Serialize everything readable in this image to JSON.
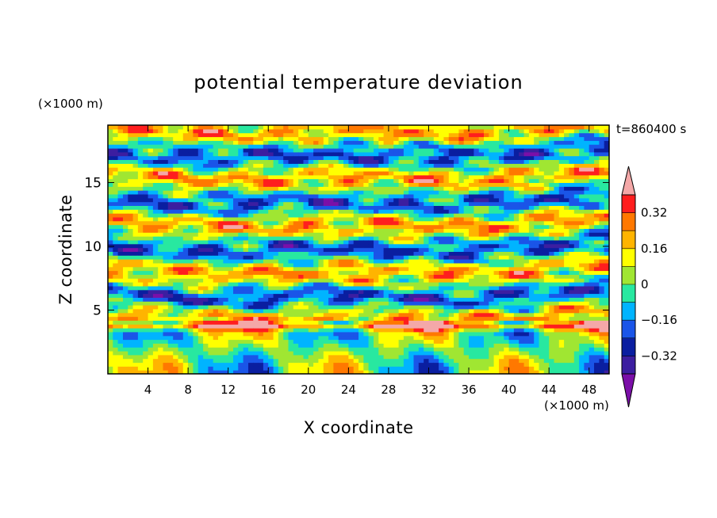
{
  "chart_data": {
    "type": "heatmap",
    "title": "potential temperature deviation",
    "xlabel": "X coordinate",
    "ylabel": "Z coordinate",
    "x_unit": "(×1000 m)",
    "y_unit": "(×1000 m)",
    "time_label": "t=860400 s",
    "xlim": [
      0,
      50
    ],
    "ylim": [
      0,
      19.5
    ],
    "x_ticks": [
      4,
      8,
      12,
      16,
      20,
      24,
      28,
      32,
      36,
      40,
      44,
      48
    ],
    "y_ticks": [
      5,
      10,
      15
    ],
    "colorbar": {
      "levels": [
        -0.4,
        -0.32,
        -0.24,
        -0.16,
        -0.08,
        0,
        0.08,
        0.16,
        0.24,
        0.32,
        0.4
      ],
      "tick_values": [
        0.32,
        0.16,
        0,
        -0.16,
        -0.32
      ],
      "tick_labels": [
        "0.32",
        "0.16",
        "0",
        "−0.16",
        "−0.32"
      ],
      "colors": [
        "#7b0fa8",
        "#3c1ea0",
        "#0a1ea0",
        "#1a55e8",
        "#00b4ff",
        "#28e8a0",
        "#a0e632",
        "#ffff00",
        "#ffb400",
        "#ff7800",
        "#ff1e1e",
        "#f4a8a8"
      ],
      "extend": "both"
    }
  }
}
